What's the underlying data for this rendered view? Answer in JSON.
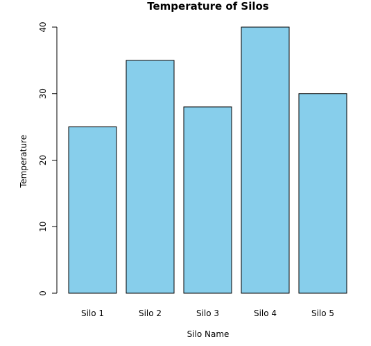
{
  "chart_data": {
    "type": "bar",
    "title": "Temperature of Silos",
    "xlabel": "Silo Name",
    "ylabel": "Temperature",
    "categories": [
      "Silo 1",
      "Silo 2",
      "Silo 3",
      "Silo 4",
      "Silo 5"
    ],
    "values": [
      25,
      35,
      28,
      40,
      30
    ],
    "ylim": [
      0,
      40
    ],
    "yticks": [
      0,
      10,
      20,
      30,
      40
    ],
    "grid": false,
    "bar_color": "#87CEEB",
    "bar_border_color": "#000000"
  }
}
